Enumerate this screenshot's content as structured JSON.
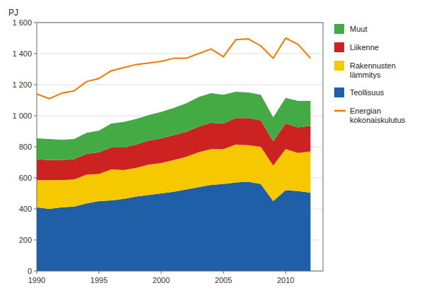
{
  "chart_data": {
    "type": "area",
    "stacked": true,
    "y_label": "PJ",
    "x": [
      1990,
      1991,
      1992,
      1993,
      1994,
      1995,
      1996,
      1997,
      1998,
      1999,
      2000,
      2001,
      2002,
      2003,
      2004,
      2005,
      2006,
      2007,
      2008,
      2009,
      2010,
      2011,
      2012
    ],
    "series": [
      {
        "name": "Teollisuus",
        "type": "area",
        "color": "#1e5fa8",
        "values": [
          410,
          400,
          410,
          415,
          435,
          450,
          455,
          465,
          480,
          490,
          500,
          510,
          525,
          540,
          555,
          560,
          570,
          575,
          560,
          450,
          520,
          515,
          505
        ]
      },
      {
        "name": "Rakennusten\nlämmitys",
        "type": "area",
        "color": "#f5c800",
        "values": [
          175,
          185,
          175,
          175,
          185,
          175,
          200,
          185,
          185,
          195,
          195,
          205,
          210,
          225,
          230,
          225,
          245,
          235,
          240,
          230,
          265,
          245,
          265
        ]
      },
      {
        "name": "Liikenne",
        "type": "area",
        "color": "#cc2222",
        "values": [
          135,
          130,
          130,
          130,
          135,
          140,
          140,
          145,
          150,
          155,
          160,
          160,
          160,
          165,
          170,
          165,
          170,
          175,
          170,
          155,
          165,
          165,
          165
        ]
      },
      {
        "name": "Muut",
        "type": "area",
        "color": "#44aa44",
        "values": [
          135,
          135,
          130,
          130,
          135,
          140,
          155,
          165,
          165,
          165,
          170,
          175,
          185,
          190,
          190,
          185,
          170,
          165,
          165,
          155,
          165,
          170,
          160
        ]
      },
      {
        "name": "Energian\nkokonaiskulutus",
        "type": "line",
        "color": "#f07800",
        "values": [
          1140,
          1110,
          1145,
          1160,
          1220,
          1240,
          1290,
          1310,
          1330,
          1340,
          1350,
          1370,
          1370,
          1400,
          1430,
          1380,
          1490,
          1495,
          1450,
          1370,
          1500,
          1460,
          1370
        ]
      }
    ],
    "xlim": [
      1990,
      2013
    ],
    "xticks": [
      1990,
      1995,
      2000,
      2005,
      2010
    ],
    "ylim": [
      0,
      1600
    ],
    "yticks": [
      0,
      200,
      400,
      600,
      800,
      {
        "value": 1000,
        "label": "1 000"
      },
      {
        "value": 1200,
        "label": "1 200"
      },
      {
        "value": 1400,
        "label": "1 400"
      },
      {
        "value": 1600,
        "label": "1 600"
      }
    ],
    "grid": true,
    "legend": "right"
  }
}
